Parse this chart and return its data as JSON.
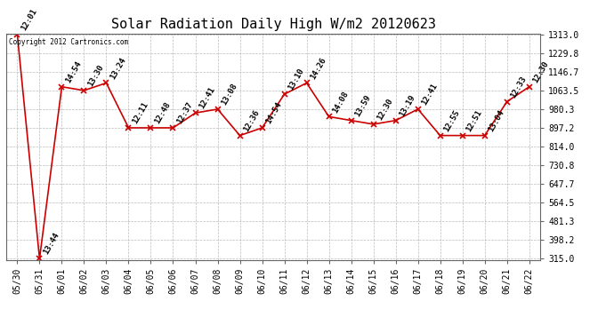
{
  "title": "Solar Radiation Daily High W/m2 20120623",
  "copyright": "Copyright 2012 Cartronics.com",
  "x_labels": [
    "05/30",
    "05/31",
    "06/01",
    "06/02",
    "06/03",
    "06/04",
    "06/05",
    "06/06",
    "06/07",
    "06/08",
    "06/09",
    "06/10",
    "06/11",
    "06/12",
    "06/13",
    "06/14",
    "06/15",
    "06/16",
    "06/17",
    "06/18",
    "06/19",
    "06/20",
    "06/21",
    "06/22"
  ],
  "y_values": [
    1313.0,
    315.0,
    1080.0,
    1063.5,
    1097.0,
    897.2,
    897.2,
    897.2,
    963.5,
    980.3,
    863.0,
    897.2,
    1046.8,
    1097.0,
    947.0,
    930.0,
    913.2,
    930.0,
    980.3,
    863.0,
    863.0,
    863.0,
    1013.5,
    1080.0
  ],
  "point_labels": [
    "12:01",
    "13:44",
    "14:54",
    "13:30",
    "13:24",
    "12:11",
    "12:48",
    "12:37",
    "12:41",
    "13:08",
    "12:36",
    "14:54",
    "13:10",
    "14:26",
    "14:08",
    "13:59",
    "12:30",
    "13:19",
    "12:41",
    "12:55",
    "12:51",
    "13:04",
    "12:33",
    "12:30"
  ],
  "y_min": 315.0,
  "y_max": 1313.0,
  "y_ticks": [
    315.0,
    398.2,
    481.3,
    564.5,
    647.7,
    730.8,
    814.0,
    897.2,
    980.3,
    1063.5,
    1146.7,
    1229.8,
    1313.0
  ],
  "y_tick_labels": [
    "315.0",
    "398.2",
    "481.3",
    "564.5",
    "647.7",
    "730.8",
    "814.0",
    "897.2",
    "980.3",
    "1063.5",
    "1146.7",
    "1229.8",
    "1313.0"
  ],
  "line_color": "#cc0000",
  "marker_color": "#cc0000",
  "bg_color": "#ffffff",
  "grid_color": "#bbbbbb",
  "title_fontsize": 11,
  "tick_fontsize": 7,
  "point_label_fontsize": 6.5
}
